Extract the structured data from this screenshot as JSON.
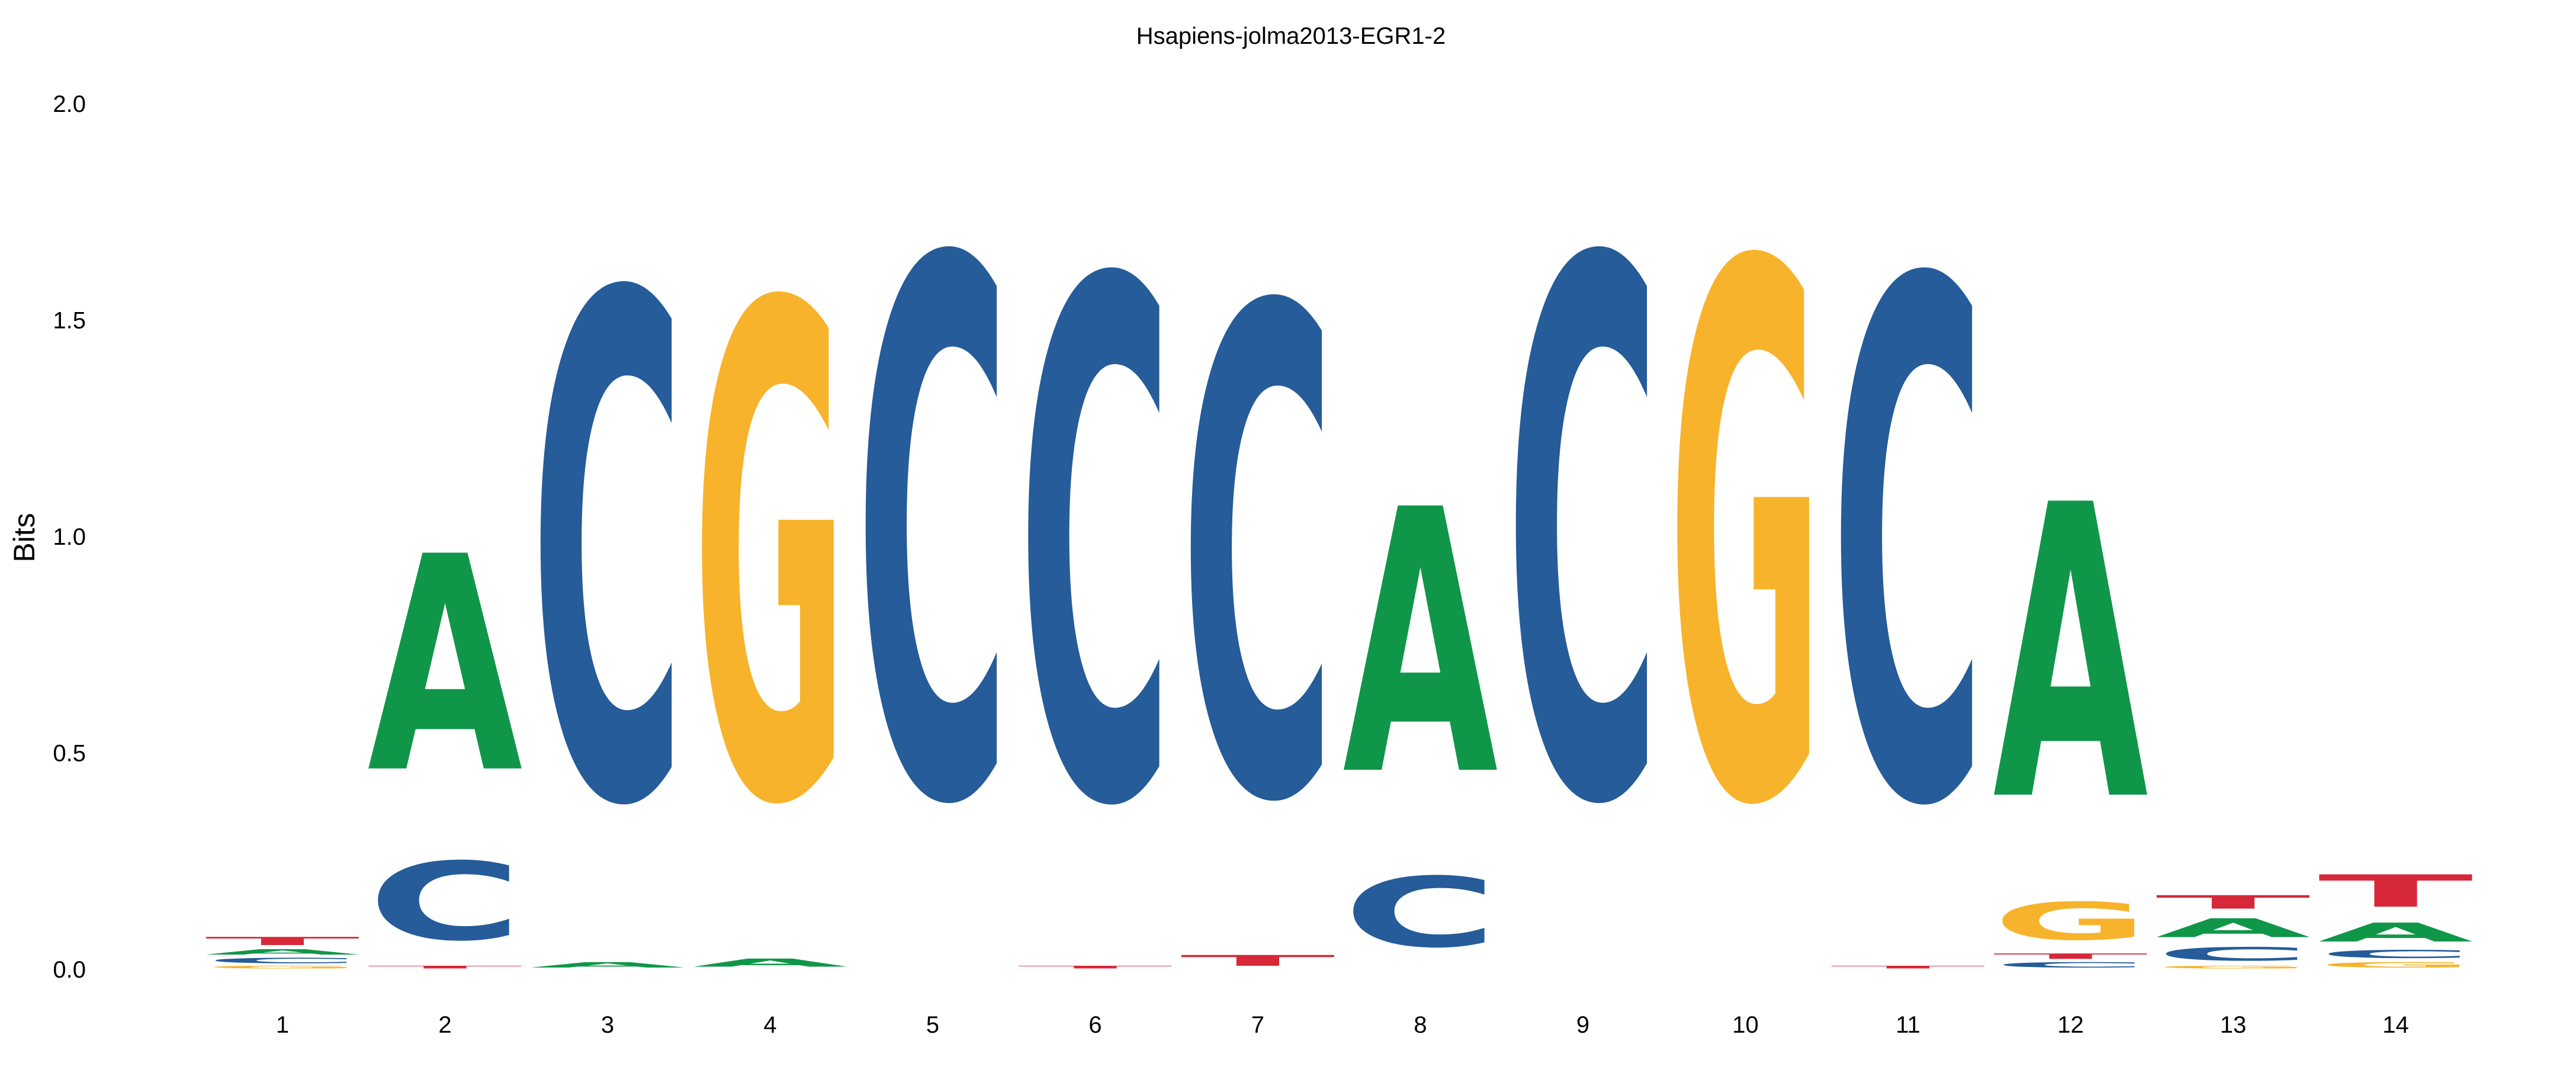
{
  "chart_data": {
    "type": "sequence-logo",
    "title": "Hsapiens-jolma2013-EGR1-2",
    "xlabel": "",
    "ylabel": "Bits",
    "ylim": [
      0,
      2.0
    ],
    "yticks": [
      "0.0",
      "0.5",
      "1.0",
      "1.5",
      "2.0"
    ],
    "xticks": [
      "1",
      "2",
      "3",
      "4",
      "5",
      "6",
      "7",
      "8",
      "9",
      "10",
      "11",
      "12",
      "13",
      "14"
    ],
    "grid": false,
    "colors": {
      "A": "#109648",
      "C": "#255C99",
      "G": "#F7B32B",
      "T": "#D62839"
    },
    "positions": [
      {
        "position": "1",
        "letters": [
          {
            "base": "G",
            "bits": 0.01
          },
          {
            "base": "C",
            "bits": 0.02
          },
          {
            "base": "A",
            "bits": 0.02
          },
          {
            "base": "T",
            "bits": 0.03
          }
        ]
      },
      {
        "position": "2",
        "letters": [
          {
            "base": "T",
            "bits": 0.01
          },
          {
            "base": "C",
            "bits": 0.29
          },
          {
            "base": "A",
            "bits": 0.8
          }
        ]
      },
      {
        "position": "3",
        "letters": [
          {
            "base": "A",
            "bits": 0.02
          },
          {
            "base": "C",
            "bits": 1.87
          }
        ]
      },
      {
        "position": "4",
        "letters": [
          {
            "base": "A",
            "bits": 0.03
          },
          {
            "base": "G",
            "bits": 1.83
          }
        ]
      },
      {
        "position": "5",
        "letters": [
          {
            "base": "C",
            "bits": 1.99
          }
        ]
      },
      {
        "position": "6",
        "letters": [
          {
            "base": "T",
            "bits": 0.01
          },
          {
            "base": "C",
            "bits": 1.92
          }
        ]
      },
      {
        "position": "7",
        "letters": [
          {
            "base": "T",
            "bits": 0.04
          },
          {
            "base": "C",
            "bits": 1.81
          }
        ]
      },
      {
        "position": "8",
        "letters": [
          {
            "base": "C",
            "bits": 0.26
          },
          {
            "base": "A",
            "bits": 0.98
          }
        ]
      },
      {
        "position": "9",
        "letters": [
          {
            "base": "C",
            "bits": 1.99
          }
        ]
      },
      {
        "position": "10",
        "letters": [
          {
            "base": "G",
            "bits": 1.98
          }
        ]
      },
      {
        "position": "11",
        "letters": [
          {
            "base": "T",
            "bits": 0.01
          },
          {
            "base": "C",
            "bits": 1.92
          }
        ]
      },
      {
        "position": "12",
        "letters": [
          {
            "base": "C",
            "bits": 0.02
          },
          {
            "base": "T",
            "bits": 0.02
          },
          {
            "base": "G",
            "bits": 0.14
          },
          {
            "base": "A",
            "bits": 1.09
          }
        ]
      },
      {
        "position": "13",
        "letters": [
          {
            "base": "G",
            "bits": 0.01
          },
          {
            "base": "C",
            "bits": 0.05
          },
          {
            "base": "A",
            "bits": 0.07
          },
          {
            "base": "T",
            "bits": 0.05
          }
        ]
      },
      {
        "position": "14",
        "letters": [
          {
            "base": "G",
            "bits": 0.02
          },
          {
            "base": "C",
            "bits": 0.03
          },
          {
            "base": "A",
            "bits": 0.07
          },
          {
            "base": "T",
            "bits": 0.12
          }
        ]
      }
    ]
  }
}
